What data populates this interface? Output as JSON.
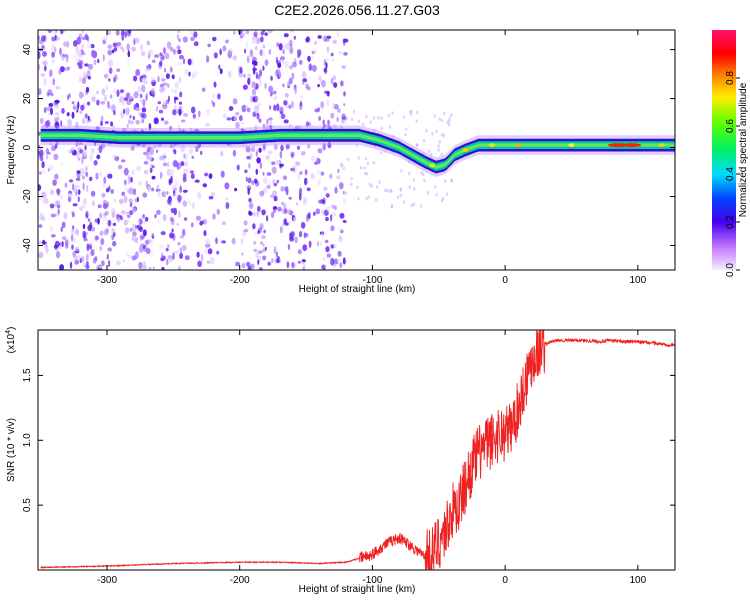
{
  "title": "C2E2.2026.056.11.27.G03",
  "colors": {
    "snr_line": "#ee2222",
    "spectrogram_band": "#00c8a0",
    "scatter": "#7a2cff",
    "frame": "#000000"
  },
  "chart_data": [
    {
      "type": "heatmap",
      "xlabel": "Height of straight line (km)",
      "ylabel": "Frequency (Hz)",
      "xlim": [
        -352,
        128
      ],
      "ylim": [
        -50,
        48
      ],
      "x_ticks": [
        -300,
        -200,
        -100,
        0,
        100
      ],
      "y_ticks": [
        -40,
        -20,
        0,
        20,
        40
      ],
      "colorbar": {
        "label": "Normalized spectral amplitude",
        "range": [
          0.0,
          1.0
        ],
        "ticks": [
          "0.0",
          "0.2",
          "0.4",
          "0.6",
          "0.8"
        ],
        "colormap": "rainbow (purple-blue-cyan-green-yellow-red-magenta)"
      },
      "ridge_line": {
        "x": [
          -350,
          -320,
          -290,
          -260,
          -230,
          -200,
          -170,
          -150,
          -130,
          -110,
          -95,
          -80,
          -70,
          -60,
          -52,
          -45,
          -38,
          -30,
          -20,
          -10,
          0,
          20,
          50,
          80,
          110,
          128
        ],
        "y": [
          5,
          5,
          4,
          4,
          4,
          4,
          5,
          5,
          5,
          5,
          3,
          0,
          -3,
          -6,
          -8,
          -7,
          -3,
          -1,
          1,
          1,
          1,
          1,
          1,
          1,
          1,
          1
        ]
      }
    },
    {
      "type": "line",
      "xlabel": "Height of straight line (km)",
      "ylabel": "SNR (10 * v/v)",
      "y_scale_label": "(x10",
      "y_scale_exp": "4",
      "y_scale_close": ")",
      "xlim": [
        -352,
        128
      ],
      "ylim": [
        0,
        1.85
      ],
      "x_ticks": [
        -300,
        -200,
        -100,
        0,
        100
      ],
      "y_ticks": [
        "0.5",
        "1.0",
        "1.5"
      ],
      "series": [
        {
          "x": [
            -350,
            -300,
            -250,
            -200,
            -170,
            -140,
            -120,
            -100,
            -90,
            -80,
            -70,
            -60,
            -55,
            -50,
            -45,
            -40,
            -35,
            -30,
            -25,
            -20,
            -15,
            -10,
            -5,
            0,
            5,
            10,
            15,
            20,
            25,
            30,
            35,
            40,
            50,
            60,
            70,
            80,
            90,
            100,
            110,
            120,
            128
          ],
          "y": [
            0.02,
            0.03,
            0.05,
            0.06,
            0.06,
            0.05,
            0.06,
            0.12,
            0.2,
            0.25,
            0.18,
            0.1,
            0.12,
            0.22,
            0.3,
            0.45,
            0.5,
            0.65,
            0.8,
            0.9,
            0.95,
            1.0,
            1.05,
            1.05,
            1.1,
            1.25,
            1.45,
            1.62,
            1.7,
            1.74,
            1.76,
            1.77,
            1.77,
            1.77,
            1.76,
            1.77,
            1.76,
            1.76,
            1.75,
            1.74,
            1.73
          ]
        }
      ]
    }
  ]
}
